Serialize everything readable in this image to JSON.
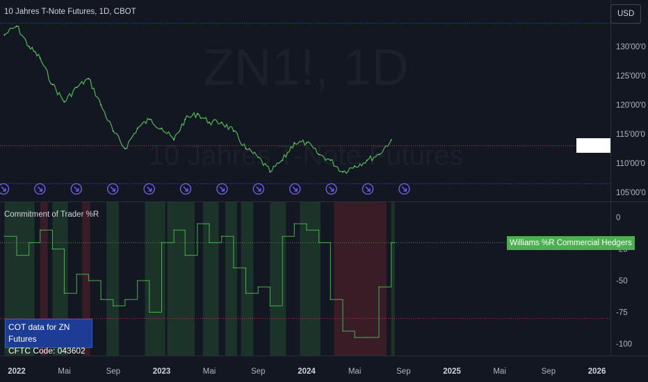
{
  "header": {
    "symbol_title": "10 Jahres T-Note Futures, 1D, CBOT",
    "currency_button": "USD"
  },
  "watermark": {
    "ticker": "ZN1!, 1D",
    "name": "10 Jahres T-Note Futures"
  },
  "price_pane": {
    "y_ticks": [
      "130'00'0",
      "125'00'0",
      "120'00'0",
      "115'00'0",
      "110'00'0",
      "105'00'0"
    ],
    "y_tick_values": [
      130,
      125,
      120,
      115,
      110,
      105
    ],
    "high_line_level": 134.0,
    "last_price_line_level": 113.0,
    "low_line_level": 106.5
  },
  "indicator_pane": {
    "title": "Commitment of Trader %R",
    "y_ticks": [
      "0",
      "-25",
      "-50",
      "-75",
      "-100"
    ],
    "y_tick_values": [
      0,
      -25,
      -50,
      -75,
      -100
    ],
    "upper_level": -20,
    "lower_level": -80,
    "series_label": "Williams %R Commercial Hedgers",
    "last_value": -20,
    "info_line1": "COT data for ZN Futures",
    "info_line2": "CFTC Code: 043602"
  },
  "time_axis": {
    "labels": [
      "2022",
      "Mai",
      "Sep",
      "2023",
      "Mai",
      "Sep",
      "2024",
      "Mai",
      "Sep",
      "2025",
      "Mai",
      "Sep",
      "2026"
    ],
    "bold": [
      true,
      false,
      false,
      true,
      false,
      false,
      true,
      false,
      false,
      true,
      false,
      false,
      true
    ]
  },
  "colors": {
    "background": "#131722",
    "price_line": "#4caf50",
    "indicator_line": "#4caf50",
    "bull_zone": "#1f3d2c",
    "bear_zone": "#45202a",
    "event_icon": "#7b61ff",
    "level_line_blue": "#2962ff",
    "level_line_red": "#f23645"
  },
  "events": {
    "icon": "dividend-arrow-icon",
    "count": 12
  },
  "chart_data": [
    {
      "type": "line",
      "title": "10 Jahres T-Note Futures, 1D, CBOT",
      "x": [
        "2021-12-01",
        "2022-01-01",
        "2022-02-01",
        "2022-03-01",
        "2022-04-01",
        "2022-05-01",
        "2022-06-01",
        "2022-07-01",
        "2022-08-01",
        "2022-09-01",
        "2022-10-01",
        "2022-11-01",
        "2022-12-01",
        "2023-01-01",
        "2023-02-01",
        "2023-03-01",
        "2023-04-01",
        "2023-05-01",
        "2023-06-01",
        "2023-07-01",
        "2023-08-01",
        "2023-09-01",
        "2023-10-01",
        "2023-11-01",
        "2023-12-01",
        "2024-01-01",
        "2024-02-01",
        "2024-03-01",
        "2024-04-01",
        "2024-05-01",
        "2024-06-01",
        "2024-07-01",
        "2024-08-01"
      ],
      "values": [
        132.0,
        133.5,
        130.0,
        128.0,
        123.5,
        120.5,
        123.0,
        124.5,
        120.0,
        115.5,
        112.5,
        116.0,
        117.5,
        116.0,
        114.0,
        117.5,
        118.5,
        117.0,
        117.0,
        115.5,
        112.5,
        111.0,
        108.5,
        110.5,
        113.5,
        113.5,
        111.5,
        110.5,
        108.5,
        109.5,
        110.5,
        111.5,
        114.0
      ],
      "ylim": [
        104,
        136
      ]
    },
    {
      "type": "line",
      "title": "Commitment of Trader %R",
      "x": [
        "2021-12-01",
        "2022-01-01",
        "2022-02-01",
        "2022-03-01",
        "2022-04-01",
        "2022-05-01",
        "2022-06-01",
        "2022-07-01",
        "2022-08-01",
        "2022-09-01",
        "2022-10-01",
        "2022-11-01",
        "2022-12-01",
        "2023-01-01",
        "2023-02-01",
        "2023-03-01",
        "2023-04-01",
        "2023-05-01",
        "2023-06-01",
        "2023-07-01",
        "2023-08-01",
        "2023-09-01",
        "2023-10-01",
        "2023-11-01",
        "2023-12-01",
        "2024-01-01",
        "2024-02-01",
        "2024-03-01",
        "2024-04-01",
        "2024-05-01",
        "2024-06-01",
        "2024-07-01",
        "2024-08-01"
      ],
      "series": [
        {
          "name": "Williams %R Commercial Hedgers",
          "values": [
            -15,
            -30,
            -20,
            -10,
            -25,
            -60,
            -45,
            -50,
            -65,
            -70,
            -65,
            -50,
            -75,
            -20,
            -10,
            -30,
            -5,
            -20,
            -15,
            -40,
            -60,
            -55,
            -70,
            -15,
            -5,
            -10,
            -20,
            -65,
            -90,
            -95,
            -95,
            -55,
            -20
          ]
        }
      ],
      "ylim": [
        -110,
        8
      ],
      "levels": [
        -20,
        -80
      ],
      "zones": [
        {
          "kind": "bull",
          "from": "2021-12-01",
          "to": "2022-02-15"
        },
        {
          "kind": "bear",
          "from": "2022-03-01",
          "to": "2022-03-20"
        },
        {
          "kind": "bull",
          "from": "2022-04-01",
          "to": "2022-05-10"
        },
        {
          "kind": "bear",
          "from": "2022-06-15",
          "to": "2022-07-05"
        },
        {
          "kind": "bull",
          "from": "2022-08-15",
          "to": "2022-09-15"
        },
        {
          "kind": "bull",
          "from": "2022-11-20",
          "to": "2023-01-10"
        },
        {
          "kind": "bull",
          "from": "2023-01-15",
          "to": "2023-03-25"
        },
        {
          "kind": "bull",
          "from": "2023-04-15",
          "to": "2023-05-25"
        },
        {
          "kind": "bull",
          "from": "2023-06-10",
          "to": "2023-07-10"
        },
        {
          "kind": "bull",
          "from": "2023-07-20",
          "to": "2023-08-20"
        },
        {
          "kind": "bull",
          "from": "2023-10-01",
          "to": "2023-11-10"
        },
        {
          "kind": "bull",
          "from": "2023-12-15",
          "to": "2024-02-05"
        },
        {
          "kind": "bear",
          "from": "2024-03-10",
          "to": "2024-07-20"
        },
        {
          "kind": "bull",
          "from": "2024-08-01",
          "to": "2024-08-10"
        }
      ]
    }
  ]
}
